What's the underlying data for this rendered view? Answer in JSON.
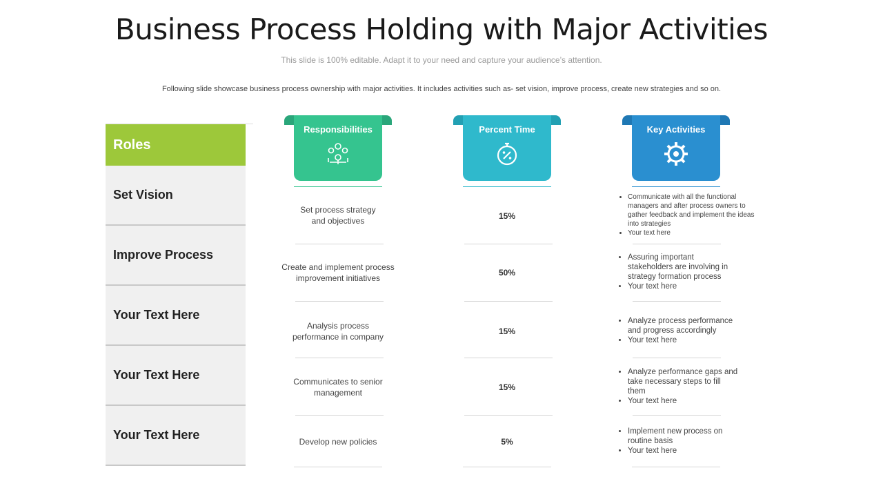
{
  "title": "Business Process Holding with Major Activities",
  "subtitle": "This slide is 100% editable. Adapt it to your need and capture your audience’s attention.",
  "description": "Following slide showcase business process ownership with major activities. It includes activities such as- set vision, improve process, create new strategies and so on.",
  "roles": {
    "header": "Roles",
    "items": [
      "Set Vision",
      "Improve Process",
      "Your Text Here",
      "Your Text Here",
      "Your Text Here"
    ]
  },
  "columns": {
    "responsibilities": {
      "label": "Responsibilities",
      "icon": "people-balance-icon",
      "color": "#35c48f",
      "tab_color": "#2aa67a"
    },
    "percent_time": {
      "label": "Percent Time",
      "icon": "stopwatch-percent-icon",
      "color": "#2fb9cc",
      "tab_color": "#22a0b3"
    },
    "key_activities": {
      "label": "Key Activities",
      "icon": "gear-icon",
      "color": "#2a8fd0",
      "tab_color": "#1f78b4"
    }
  },
  "responsibilities": [
    [
      "Set process strategy",
      "and objectives"
    ],
    [
      "Create and implement process",
      "improvement  initiatives"
    ],
    [
      "Analysis process",
      "performance  in company"
    ],
    [
      "Communicates to senior",
      "management"
    ],
    [
      "Develop  new policies"
    ]
  ],
  "percent_time": [
    "15%",
    "50%",
    "15%",
    "15%",
    "5%"
  ],
  "key_activities": [
    [
      "Communicate  with all the functional managers and after process owners to gather feedback and implement  the ideas into strategies",
      "Your text here"
    ],
    [
      "Assuring important stakeholders are involving in strategy formation process",
      "Your text here"
    ],
    [
      "Analyze  process performance and progress accordingly",
      "Your text here"
    ],
    [
      "Analyze  performance gaps and take necessary steps to fill them",
      "Your text here"
    ],
    [
      "Implement new process on routine basis",
      "Your text here"
    ]
  ]
}
